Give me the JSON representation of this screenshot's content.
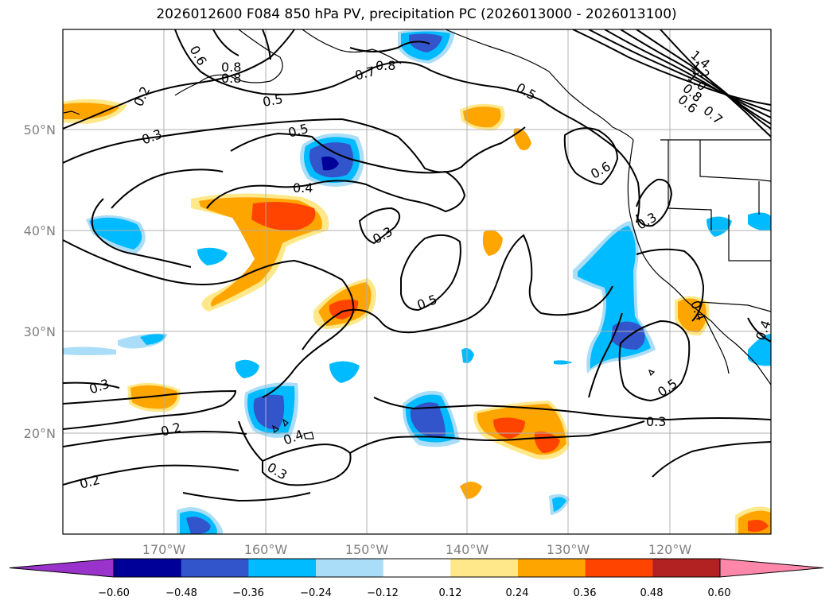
{
  "title": "2026012600 F084 850 hPa PV, precipitation PC (2026013000 - 2026013100)",
  "lon_labels": [
    "170°W",
    "160°W",
    "150°W",
    "140°W",
    "130°W",
    "120°W"
  ],
  "lat_labels": [
    "50°N",
    "40°N",
    "30°N",
    "20°N"
  ],
  "contour_labels": [
    "0.6",
    "0.8",
    "0.8",
    "0.2",
    "0.7",
    "0.8",
    "0.5",
    "0.5",
    "0.3",
    "0.5",
    "1.4",
    "1.2",
    "1.0",
    "0.8",
    "0.6",
    "0.7",
    "0.4",
    "0.6",
    "0.3",
    "0.3",
    "0.5",
    "0.4",
    "0.4",
    "0.3",
    "0.5",
    "0.3",
    "0.2",
    "0.4",
    "0.3",
    "0.2"
  ],
  "colorbar": {
    "ticks": [
      "−0.60",
      "−0.48",
      "−0.36",
      "−0.24",
      "−0.12",
      "0.12",
      "0.24",
      "0.36",
      "0.48",
      "0.60"
    ],
    "colors": [
      "#9933cc",
      "#000099",
      "#3355cc",
      "#00bbff",
      "#aaddf7",
      "#ffffff",
      "#ffe88a",
      "#ffa500",
      "#ff4400",
      "#b22222",
      "#ff88aa"
    ]
  }
}
